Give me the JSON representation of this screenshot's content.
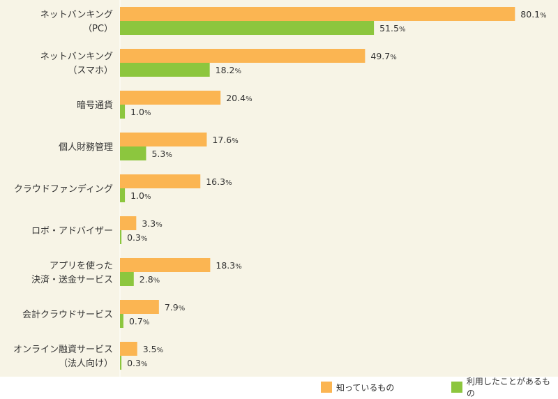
{
  "chart_data": {
    "type": "bar",
    "orientation": "horizontal",
    "categories": [
      [
        "ネットバンキング",
        "（PC）"
      ],
      [
        "ネットバンキング",
        "（スマホ）"
      ],
      [
        "暗号通貨"
      ],
      [
        "個人財務管理"
      ],
      [
        "クラウドファンディング"
      ],
      [
        "ロボ・アドバイザー"
      ],
      [
        "アプリを使った",
        "決済・送金サービス"
      ],
      [
        "会計クラウドサービス"
      ],
      [
        "オンライン融資サービス",
        "（法人向け）"
      ]
    ],
    "series": [
      {
        "name": "知っているもの",
        "color": "#fbb552",
        "values": [
          80.1,
          49.7,
          20.4,
          17.6,
          16.3,
          3.3,
          18.3,
          7.9,
          3.5
        ],
        "labels": [
          "80.1%",
          "49.7%",
          "20.4%",
          "17.6%",
          "16.3%",
          "3.3%",
          "18.3%",
          "7.9%",
          "3.5%"
        ]
      },
      {
        "name": "利用したことがあるもの",
        "color": "#8cc63e",
        "values": [
          51.5,
          18.2,
          1.0,
          5.3,
          1.0,
          0.3,
          2.8,
          0.7,
          0.3
        ],
        "labels": [
          "51.5%",
          "18.2%",
          "1.0%",
          "5.3%",
          "1.0%",
          "0.3%",
          "2.8%",
          "0.7%",
          "0.3%"
        ]
      }
    ],
    "xlim": [
      0,
      100
    ],
    "legend_position": "bottom-right",
    "grid": false
  },
  "legend": {
    "known_label": "知っているもの",
    "used_label": "利用したことがあるもの",
    "known_color": "#fbb552",
    "used_color": "#8cc63e"
  }
}
